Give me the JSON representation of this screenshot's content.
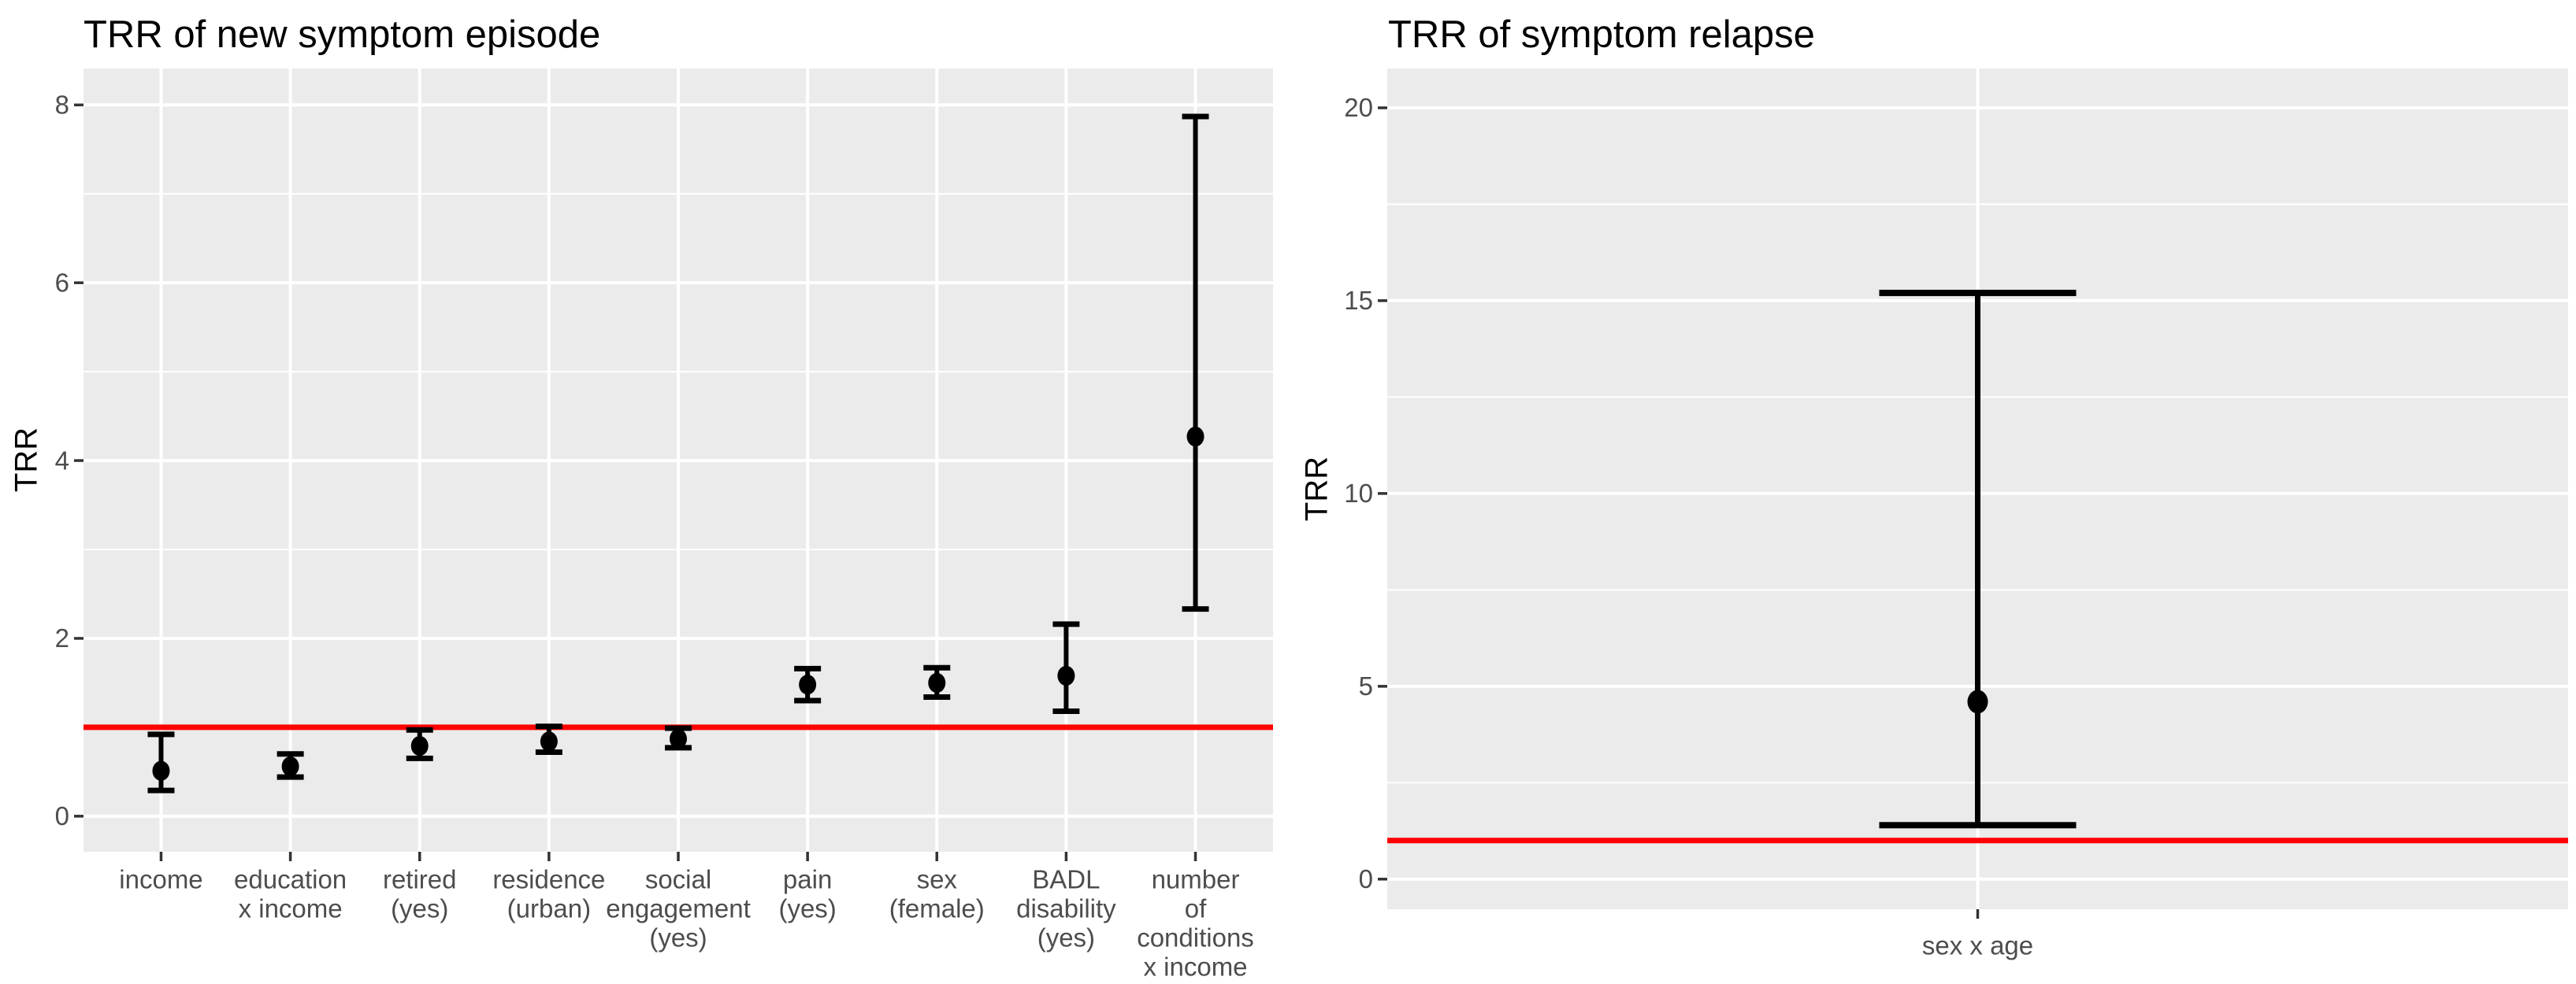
{
  "page": {
    "background": "#FFFFFF"
  },
  "chart_data": [
    {
      "type": "scatter",
      "subtype": "pointrange-errorbar",
      "title": "TRR of new symptom episode",
      "xlabel": "",
      "ylabel": "TRR",
      "categories": [
        "income",
        "education\nx income",
        "retired\n(yes)",
        "residence\n(urban)",
        "social\nengagement\n(yes)",
        "pain\n(yes)",
        "sex\n(female)",
        "BADL\ndisability\n(yes)",
        "number\nof\nconditions\nx income"
      ],
      "series": [
        {
          "name": "TRR",
          "values": [
            0.51,
            0.56,
            0.79,
            0.84,
            0.87,
            1.48,
            1.5,
            1.58,
            4.27
          ],
          "ci_low": [
            0.29,
            0.44,
            0.65,
            0.72,
            0.77,
            1.3,
            1.34,
            1.18,
            2.33
          ],
          "ci_high": [
            0.92,
            0.7,
            0.97,
            1.01,
            0.99,
            1.66,
            1.67,
            2.16,
            7.87
          ]
        }
      ],
      "yticks": [
        0,
        2,
        4,
        6,
        8
      ],
      "yticks_minor": [
        1,
        3,
        5,
        7
      ],
      "ylim": [
        -0.4,
        8.41
      ],
      "reference_line": 1.0,
      "grid": true,
      "legend": "none",
      "colors": {
        "point": "#000000",
        "errorbar": "#000000",
        "reference": "#FF0000",
        "panel": "#EBEBEB",
        "grid": "#FFFFFF",
        "axis_text": "#4D4D4D",
        "tick_mark": "#333333",
        "title": "#000000"
      }
    },
    {
      "type": "scatter",
      "subtype": "pointrange-errorbar",
      "title": "TRR of symptom relapse",
      "xlabel": "",
      "ylabel": "TRR",
      "categories": [
        "sex x age"
      ],
      "series": [
        {
          "name": "TRR",
          "values": [
            4.6
          ],
          "ci_low": [
            1.4
          ],
          "ci_high": [
            15.2
          ]
        }
      ],
      "yticks": [
        0,
        5,
        10,
        15,
        20
      ],
      "yticks_minor": [
        2.5,
        7.5,
        12.5,
        17.5
      ],
      "ylim": [
        -0.78,
        21.02
      ],
      "reference_line": 1.0,
      "grid": true,
      "legend": "none",
      "colors": {
        "point": "#000000",
        "errorbar": "#000000",
        "reference": "#FF0000",
        "panel": "#EBEBEB",
        "grid": "#FFFFFF",
        "axis_text": "#4D4D4D",
        "tick_mark": "#333333",
        "title": "#000000"
      }
    }
  ]
}
